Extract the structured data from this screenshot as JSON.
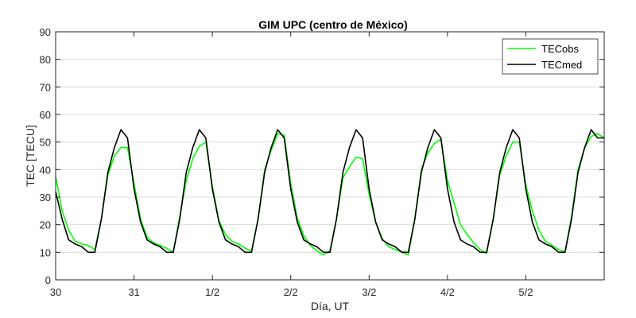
{
  "chart_data": {
    "type": "line",
    "title": "GIM UPC (centro de México)",
    "xlabel": "Día, UT",
    "ylabel": "TEC [TECU]",
    "xlim": [
      0,
      7
    ],
    "ylim": [
      0,
      90
    ],
    "yticks": [
      0,
      10,
      20,
      30,
      40,
      50,
      60,
      70,
      80,
      90
    ],
    "xticks": [
      {
        "x": 0,
        "label": "30"
      },
      {
        "x": 1,
        "label": "31"
      },
      {
        "x": 2,
        "label": "1/2"
      },
      {
        "x": 3,
        "label": "2/2"
      },
      {
        "x": 4,
        "label": "3/2"
      },
      {
        "x": 5,
        "label": "4/2"
      },
      {
        "x": 6,
        "label": "5/2"
      }
    ],
    "grid": "horizontal",
    "legend_position": "top-right",
    "x": [
      0,
      0.0833,
      0.1667,
      0.25,
      0.3333,
      0.4167,
      0.5,
      0.5833,
      0.6667,
      0.75,
      0.8333,
      0.9167,
      1,
      1.0833,
      1.1667,
      1.25,
      1.3333,
      1.4167,
      1.5,
      1.5833,
      1.6667,
      1.75,
      1.8333,
      1.9167,
      2,
      2.0833,
      2.1667,
      2.25,
      2.3333,
      2.4167,
      2.5,
      2.5833,
      2.6667,
      2.75,
      2.8333,
      2.9167,
      3,
      3.0833,
      3.1667,
      3.25,
      3.3333,
      3.4167,
      3.5,
      3.5833,
      3.6667,
      3.75,
      3.8333,
      3.9167,
      4,
      4.0833,
      4.1667,
      4.25,
      4.3333,
      4.4167,
      4.5,
      4.5833,
      4.6667,
      4.75,
      4.8333,
      4.9167,
      5,
      5.0833,
      5.1667,
      5.25,
      5.3333,
      5.4167,
      5.5,
      5.5833,
      5.6667,
      5.75,
      5.8333,
      5.9167,
      6,
      6.0833,
      6.1667,
      6.25,
      6.3333,
      6.4167,
      6.5,
      6.5833,
      6.6667,
      6.75,
      6.8333,
      6.9167,
      7
    ],
    "series": [
      {
        "name": "TECobs",
        "color": "#00ff00",
        "values": [
          37.5,
          25,
          18,
          14,
          13,
          12.5,
          11,
          22,
          38,
          45,
          48,
          48,
          35,
          22,
          15.5,
          13.5,
          12.5,
          11.5,
          10,
          23,
          36,
          44,
          48.5,
          50,
          34,
          21.5,
          16.5,
          14,
          13,
          11.5,
          10.5,
          22,
          40,
          47,
          53,
          52.5,
          35,
          22.5,
          16,
          12.5,
          10.5,
          9,
          10.5,
          22,
          37,
          41,
          44.5,
          44,
          31,
          21,
          15,
          12,
          11,
          10,
          9,
          22,
          40,
          46,
          49.5,
          51,
          36,
          28,
          20,
          16.5,
          13.5,
          11,
          9.5,
          22,
          38,
          45,
          50,
          50,
          34.5,
          25,
          18,
          14,
          12.5,
          11,
          10,
          23,
          40,
          48,
          52,
          53,
          51.5
        ]
      },
      {
        "name": "TECmed",
        "color": "#000000",
        "values": [
          32,
          22,
          14.5,
          13,
          12,
          10,
          10,
          22,
          39,
          48,
          54.5,
          51.5,
          33,
          21,
          14.5,
          13,
          12,
          10,
          10,
          22,
          39,
          48,
          54.5,
          51.5,
          33,
          21,
          14.5,
          13,
          12,
          10,
          10,
          22,
          39,
          48,
          54.5,
          51.5,
          33,
          21,
          14.5,
          13,
          12,
          10,
          10,
          22,
          39,
          48,
          54.5,
          51.5,
          33,
          21,
          14.5,
          13,
          12,
          10,
          10,
          22,
          39,
          48,
          54.5,
          51.5,
          33,
          21,
          14.5,
          13,
          12,
          10,
          10,
          22,
          39,
          48,
          54.5,
          51.5,
          33,
          21,
          14.5,
          13,
          12,
          10,
          10,
          22,
          39,
          48,
          54.5,
          51.5,
          51.5
        ]
      }
    ]
  }
}
